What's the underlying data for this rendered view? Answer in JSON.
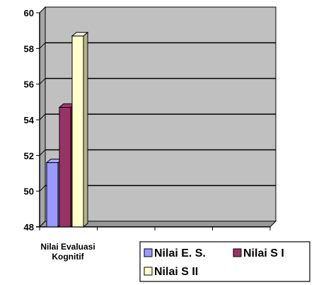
{
  "chart_data": {
    "type": "bar",
    "categories": [
      "Nilai Evaluasi Kognitif"
    ],
    "category_lines": [
      [
        "Nilai Evaluasi",
        "Kognitif"
      ]
    ],
    "series": [
      {
        "name": "Nilai E. S.",
        "values": [
          51.6
        ],
        "color": "#9999FF"
      },
      {
        "name": "Nilai S I",
        "values": [
          54.7
        ],
        "color": "#993366"
      },
      {
        "name": "Nilai S II",
        "values": [
          58.7
        ],
        "color": "#FFFFCC"
      }
    ],
    "ylim": [
      48,
      60
    ],
    "yticks": [
      "48",
      "50",
      "52",
      "54",
      "56",
      "58",
      "60"
    ],
    "grid": true,
    "three_d": true,
    "plot_background": "#C0C0C0",
    "legend_position": "bottom-right",
    "legend_rows": [
      [
        0,
        1
      ],
      [
        2
      ]
    ]
  }
}
